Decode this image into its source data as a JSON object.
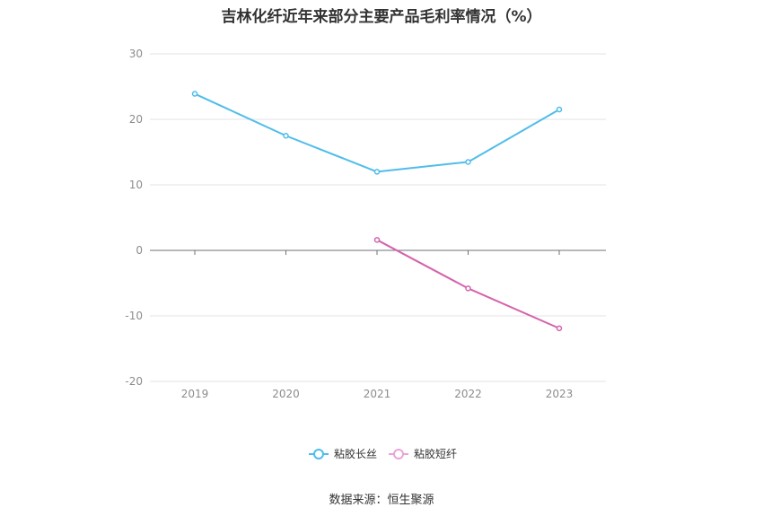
{
  "chart_data": {
    "type": "line",
    "title": "吉林化纤近年来部分主要产品毛利率情况（%）",
    "categories": [
      "2019",
      "2020",
      "2021",
      "2022",
      "2023"
    ],
    "yticks": [
      "30",
      "20",
      "10",
      "0",
      "-10",
      "-20"
    ],
    "ylim": [
      -20,
      30
    ],
    "grid": true,
    "legend_position": "bottom-center",
    "series": [
      {
        "name": "粘胶长丝",
        "color": "#4fbdea",
        "values": [
          23.9,
          17.5,
          12.0,
          13.5,
          21.5
        ]
      },
      {
        "name": "粘胶短纤",
        "color": "#d463ac",
        "legend_color": "#eaa5d6",
        "values": [
          null,
          null,
          1.6,
          -5.8,
          -11.9
        ]
      }
    ]
  },
  "source_note": "数据来源：恒生聚源"
}
